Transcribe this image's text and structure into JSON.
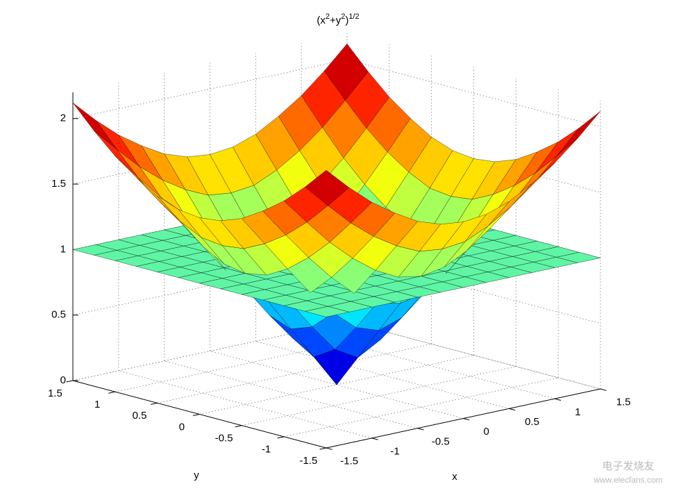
{
  "chart_data": {
    "type": "surface",
    "title": [
      "(x",
      "2",
      "+y",
      "2",
      ")",
      "1/2"
    ],
    "xlabel": "x",
    "ylabel": "y",
    "x": [
      -1.5,
      -1.25,
      -1,
      -0.75,
      -0.5,
      -0.25,
      0,
      0.25,
      0.5,
      0.75,
      1,
      1.25,
      1.5
    ],
    "y": [
      -1.5,
      -1.25,
      -1,
      -0.75,
      -0.5,
      -0.25,
      0,
      0.25,
      0.5,
      0.75,
      1,
      1.25,
      1.5
    ],
    "series": [
      {
        "colormap": "jet",
        "z": [
          [
            2.12,
            1.95,
            1.8,
            1.68,
            1.58,
            1.52,
            1.5,
            1.52,
            1.58,
            1.68,
            1.8,
            1.95,
            2.12
          ],
          [
            1.95,
            1.77,
            1.6,
            1.46,
            1.35,
            1.27,
            1.25,
            1.27,
            1.35,
            1.46,
            1.6,
            1.77,
            1.95
          ],
          [
            1.8,
            1.6,
            1.41,
            1.25,
            1.12,
            1.03,
            1,
            1.03,
            1.12,
            1.25,
            1.41,
            1.6,
            1.8
          ],
          [
            1.68,
            1.46,
            1.25,
            1.06,
            0.9,
            0.79,
            0.75,
            0.79,
            0.9,
            1.06,
            1.25,
            1.46,
            1.68
          ],
          [
            1.58,
            1.35,
            1.12,
            0.9,
            0.71,
            0.56,
            0.5,
            0.56,
            0.71,
            0.9,
            1.12,
            1.35,
            1.58
          ],
          [
            1.52,
            1.27,
            1.03,
            0.79,
            0.56,
            0.35,
            0.25,
            0.35,
            0.56,
            0.79,
            1.03,
            1.27,
            1.52
          ],
          [
            1.5,
            1.25,
            1,
            0.75,
            0.5,
            0.25,
            0,
            0.25,
            0.5,
            0.75,
            1,
            1.25,
            1.5
          ],
          [
            1.52,
            1.27,
            1.03,
            0.79,
            0.56,
            0.35,
            0.25,
            0.35,
            0.56,
            0.79,
            1.03,
            1.27,
            1.52
          ],
          [
            1.58,
            1.35,
            1.12,
            0.9,
            0.71,
            0.56,
            0.5,
            0.56,
            0.71,
            0.9,
            1.12,
            1.35,
            1.58
          ],
          [
            1.68,
            1.46,
            1.25,
            1.06,
            0.9,
            0.79,
            0.75,
            0.79,
            0.9,
            1.06,
            1.25,
            1.46,
            1.68
          ],
          [
            1.8,
            1.6,
            1.41,
            1.25,
            1.12,
            1.03,
            1,
            1.03,
            1.12,
            1.25,
            1.41,
            1.6,
            1.8
          ],
          [
            1.95,
            1.77,
            1.6,
            1.46,
            1.35,
            1.27,
            1.25,
            1.27,
            1.35,
            1.46,
            1.6,
            1.77,
            1.95
          ],
          [
            2.12,
            1.95,
            1.8,
            1.68,
            1.58,
            1.52,
            1.5,
            1.52,
            1.58,
            1.68,
            1.8,
            1.95,
            2.12
          ]
        ]
      },
      {
        "color": "#5ff5a5",
        "z": 1
      }
    ],
    "xlim": [
      -1.5,
      1.5
    ],
    "ylim": [
      -1.5,
      1.5
    ],
    "zlim": [
      0,
      2.2
    ],
    "xticks": [
      -1.5,
      -1,
      -0.5,
      0,
      0.5,
      1,
      1.5
    ],
    "yticks": [
      -1.5,
      -1,
      -0.5,
      0,
      0.5,
      1,
      1.5
    ],
    "zticks": [
      0,
      0.5,
      1,
      1.5,
      2
    ],
    "grid": true,
    "watermark": [
      "电子发烧友",
      "www.elecfans.com"
    ]
  }
}
